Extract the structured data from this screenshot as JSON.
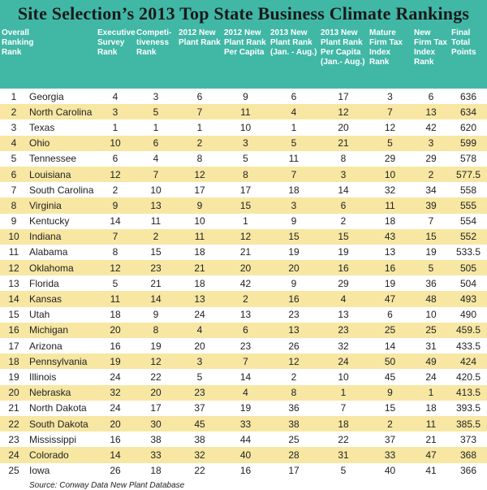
{
  "title": "Site Selection’s 2013 Top State Business Climate Rankings",
  "source": "Source: Conway Data New Plant Database",
  "colors": {
    "header": "#41b7a6",
    "stripe": "#f7e7a3"
  },
  "chart_data": {
    "type": "table",
    "columns": [
      "Overall Ranking Rank",
      "",
      "Executive Survey Rank",
      "Competi-tiveness Rank",
      "2012 New Plant Rank",
      "2012 New Plant Rank Per Capita",
      "2013 New Plant Rank (Jan. - Aug.)",
      "2013 New Plant Rank Per Capita (Jan.- Aug.)",
      "Mature Firm Tax Index Rank",
      "New Firm Tax Index Rank",
      "Final Total Points"
    ],
    "rows": [
      [
        "1",
        "Georgia",
        "4",
        "3",
        "6",
        "9",
        "6",
        "17",
        "3",
        "6",
        "636"
      ],
      [
        "2",
        "North Carolina",
        "3",
        "5",
        "7",
        "11",
        "4",
        "12",
        "7",
        "13",
        "634"
      ],
      [
        "3",
        "Texas",
        "1",
        "1",
        "1",
        "10",
        "1",
        "20",
        "12",
        "42",
        "620"
      ],
      [
        "4",
        "Ohio",
        "10",
        "6",
        "2",
        "3",
        "5",
        "21",
        "5",
        "3",
        "599"
      ],
      [
        "5",
        "Tennessee",
        "6",
        "4",
        "8",
        "5",
        "11",
        "8",
        "29",
        "29",
        "578"
      ],
      [
        "6",
        "Louisiana",
        "12",
        "7",
        "12",
        "8",
        "7",
        "3",
        "10",
        "2",
        "577.5"
      ],
      [
        "7",
        "South Carolina",
        "2",
        "10",
        "17",
        "17",
        "18",
        "14",
        "32",
        "34",
        "558"
      ],
      [
        "8",
        "Virginia",
        "9",
        "13",
        "9",
        "15",
        "3",
        "6",
        "11",
        "39",
        "555"
      ],
      [
        "9",
        "Kentucky",
        "14",
        "11",
        "10",
        "1",
        "9",
        "2",
        "18",
        "7",
        "554"
      ],
      [
        "10",
        "Indiana",
        "7",
        "2",
        "11",
        "12",
        "15",
        "15",
        "43",
        "15",
        "552"
      ],
      [
        "11",
        "Alabama",
        "8",
        "15",
        "18",
        "21",
        "19",
        "19",
        "13",
        "19",
        "533.5"
      ],
      [
        "12",
        "Oklahoma",
        "12",
        "23",
        "21",
        "20",
        "20",
        "16",
        "16",
        "5",
        "505"
      ],
      [
        "13",
        "Florida",
        "5",
        "21",
        "18",
        "42",
        "9",
        "29",
        "19",
        "36",
        "504"
      ],
      [
        "14",
        "Kansas",
        "11",
        "14",
        "13",
        "2",
        "16",
        "4",
        "47",
        "48",
        "493"
      ],
      [
        "15",
        "Utah",
        "18",
        "9",
        "24",
        "13",
        "23",
        "13",
        "6",
        "10",
        "490"
      ],
      [
        "16",
        "Michigan",
        "20",
        "8",
        "4",
        "6",
        "13",
        "23",
        "25",
        "25",
        "459.5"
      ],
      [
        "17",
        "Arizona",
        "16",
        "19",
        "20",
        "23",
        "26",
        "32",
        "14",
        "31",
        "433.5"
      ],
      [
        "18",
        "Pennsylvania",
        "19",
        "12",
        "3",
        "7",
        "12",
        "24",
        "50",
        "49",
        "424"
      ],
      [
        "19",
        "Illinois",
        "24",
        "22",
        "5",
        "14",
        "2",
        "10",
        "45",
        "24",
        "420.5"
      ],
      [
        "20",
        "Nebraska",
        "32",
        "20",
        "23",
        "4",
        "8",
        "1",
        "9",
        "1",
        "413.5"
      ],
      [
        "21",
        "North Dakota",
        "24",
        "17",
        "37",
        "19",
        "36",
        "7",
        "15",
        "18",
        "393.5"
      ],
      [
        "22",
        "South Dakota",
        "20",
        "30",
        "45",
        "33",
        "38",
        "18",
        "2",
        "11",
        "385.5"
      ],
      [
        "23",
        "Mississippi",
        "16",
        "38",
        "38",
        "44",
        "25",
        "22",
        "37",
        "21",
        "373"
      ],
      [
        "24",
        "Colorado",
        "14",
        "33",
        "32",
        "40",
        "28",
        "31",
        "33",
        "47",
        "368"
      ],
      [
        "25",
        "Iowa",
        "26",
        "18",
        "22",
        "16",
        "17",
        "5",
        "40",
        "41",
        "366"
      ]
    ]
  }
}
